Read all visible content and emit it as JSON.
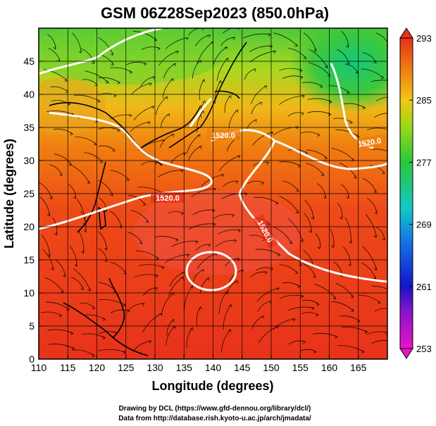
{
  "title": "GSM 06Z28Sep2023 (850.0hPa)",
  "x_axis": {
    "label": "Longitude (degrees)",
    "ticks": [
      "110",
      "115",
      "120",
      "125",
      "130",
      "135",
      "140",
      "145",
      "150",
      "155",
      "160",
      "165"
    ],
    "range": [
      110,
      170
    ]
  },
  "y_axis": {
    "label": "Latitude  (degrees)",
    "ticks": [
      "0",
      "5",
      "10",
      "15",
      "20",
      "25",
      "30",
      "35",
      "40",
      "45"
    ],
    "range": [
      0,
      50
    ]
  },
  "colorbar": {
    "ticks": [
      "253",
      "261",
      "269",
      "277",
      "285",
      "293"
    ],
    "range": [
      253,
      293
    ]
  },
  "contour_labels": [
    "1520.0",
    "1520.0",
    "1520.0",
    "1520.0"
  ],
  "credits": {
    "line1": "Drawing by DCL (https://www.gfd-dennou.org/library/dcl/)",
    "line2": "Data from http://database.rish.kyoto-u.ac.jp/arch/jmadata/"
  },
  "colors": {
    "warm": "#e8321a",
    "mid": "#f07d10",
    "yellow": "#e8e000",
    "green": "#28c83c",
    "cyan": "#14c8c8",
    "blue": "#1414c8",
    "magenta": "#e614c8"
  }
}
